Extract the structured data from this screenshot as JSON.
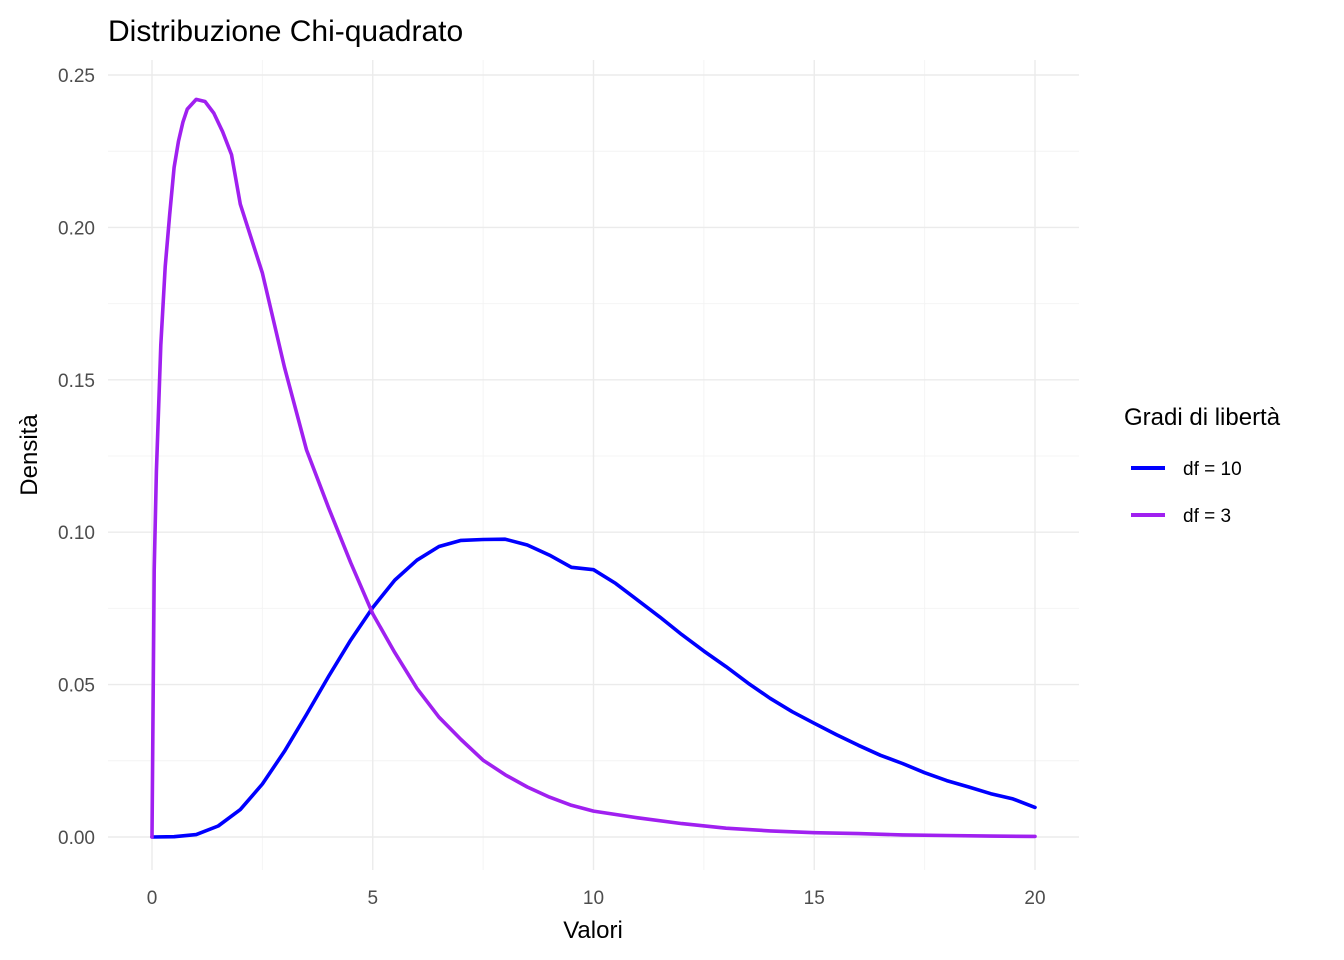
{
  "chart_data": {
    "type": "line",
    "title": "Distribuzione Chi-quadrato",
    "xlabel": "Valori",
    "ylabel": "Densità",
    "xlim": [
      0,
      20
    ],
    "ylim": [
      0,
      0.25
    ],
    "x_ticks": [
      0,
      5,
      10,
      15,
      20
    ],
    "y_ticks": [
      0.0,
      0.05,
      0.1,
      0.15,
      0.2,
      0.25
    ],
    "x_tick_labels": [
      "0",
      "5",
      "10",
      "15",
      "20"
    ],
    "y_tick_labels": [
      "0.00",
      "0.05",
      "0.10",
      "0.15",
      "0.20",
      "0.25"
    ],
    "grid": true,
    "legend": {
      "title": "Gradi di libertà",
      "position": "right"
    },
    "series": [
      {
        "name": "df = 10",
        "color": "#0000ff",
        "x": [
          0,
          0.5,
          1,
          1.5,
          2,
          2.5,
          3,
          3.5,
          4,
          4.5,
          5,
          5.5,
          6,
          6.5,
          7,
          7.5,
          8,
          8.5,
          9,
          9.5,
          10,
          10.5,
          11,
          11.5,
          12,
          12.5,
          13,
          13.5,
          14,
          14.5,
          15,
          15.5,
          16,
          16.5,
          17,
          17.5,
          18,
          18.5,
          19,
          19.5,
          20
        ],
        "y": [
          0.0,
          0.0001,
          0.0008,
          0.0036,
          0.009,
          0.0174,
          0.0281,
          0.0402,
          0.0527,
          0.0646,
          0.0753,
          0.0843,
          0.0908,
          0.0953,
          0.0973,
          0.0976,
          0.0977,
          0.0958,
          0.0925,
          0.0885,
          0.0877,
          0.0832,
          0.0777,
          0.0722,
          0.0664,
          0.061,
          0.0559,
          0.0505,
          0.0455,
          0.0411,
          0.0373,
          0.0336,
          0.0301,
          0.0268,
          0.0241,
          0.0211,
          0.0185,
          0.0164,
          0.0142,
          0.0125,
          0.0097
        ]
      },
      {
        "name": "df = 3",
        "color": "#a020f0",
        "x": [
          0,
          0.05,
          0.1,
          0.2,
          0.3,
          0.4,
          0.5,
          0.6,
          0.7,
          0.8,
          1,
          1.2,
          1.4,
          1.6,
          1.8,
          2,
          2.5,
          3,
          3.5,
          4,
          4.5,
          5,
          5.5,
          6,
          6.5,
          7,
          7.5,
          8,
          8.5,
          9,
          9.5,
          10,
          11,
          12,
          13,
          14,
          15,
          16,
          17,
          18,
          19,
          20
        ],
        "y": [
          0.0,
          0.0876,
          0.12,
          0.1614,
          0.1871,
          0.2043,
          0.2197,
          0.2283,
          0.2345,
          0.2388,
          0.242,
          0.2413,
          0.2375,
          0.2314,
          0.2239,
          0.2076,
          0.185,
          0.1542,
          0.127,
          0.108,
          0.09,
          0.0732,
          0.0605,
          0.0488,
          0.0393,
          0.032,
          0.0252,
          0.0204,
          0.0164,
          0.0131,
          0.0104,
          0.0085,
          0.0063,
          0.0044,
          0.0029,
          0.002,
          0.0014,
          0.0011,
          0.0007,
          0.0005,
          0.0003,
          0.0002
        ]
      }
    ]
  }
}
